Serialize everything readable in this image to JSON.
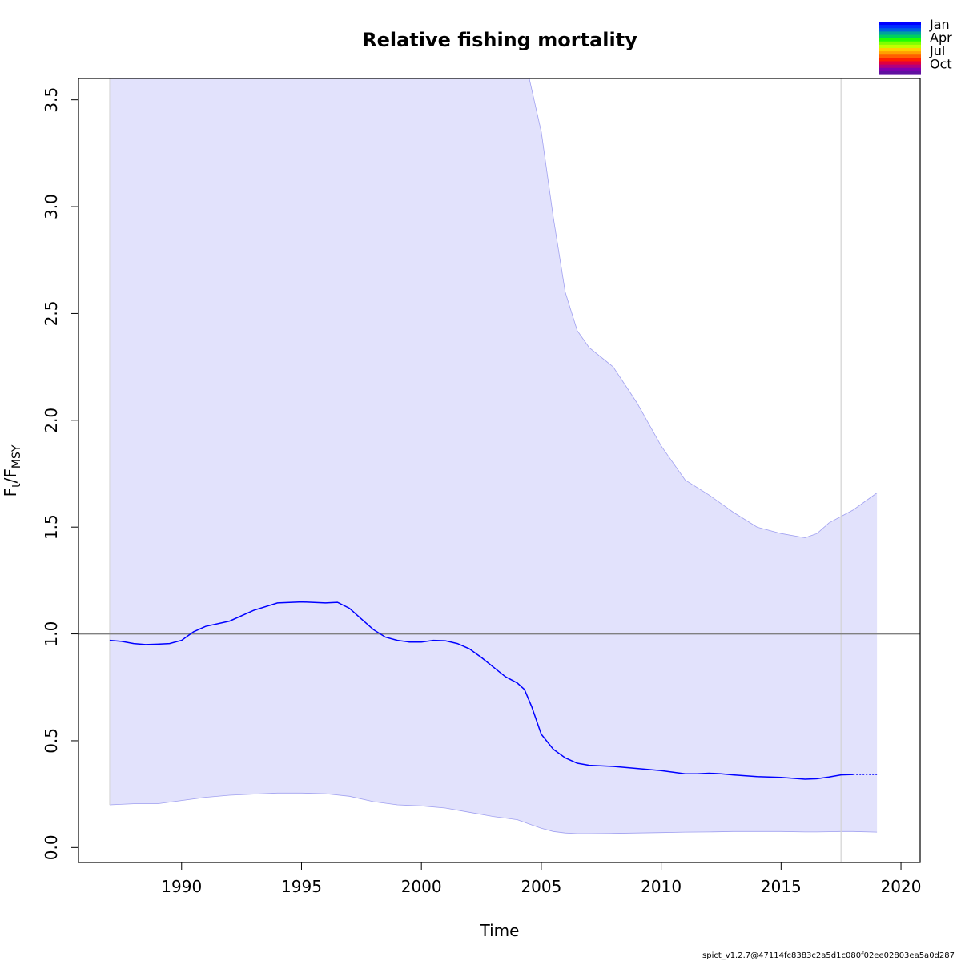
{
  "chart_data": {
    "type": "line",
    "title": "Relative fishing mortality",
    "xlabel": "Time",
    "ylabel_main": "F",
    "ylabel_sub1": "t",
    "ylabel_sep": "/F",
    "ylabel_sub2": "MSY",
    "xlim": [
      1985.7,
      2020.8
    ],
    "ylim": [
      -0.07,
      3.6
    ],
    "x_ticks": [
      1990,
      1995,
      2000,
      2005,
      2010,
      2015,
      2020
    ],
    "x_tick_labels": [
      "1990",
      "1995",
      "2000",
      "2005",
      "2010",
      "2015",
      "2020"
    ],
    "y_ticks": [
      0.0,
      0.5,
      1.0,
      1.5,
      2.0,
      2.5,
      3.0,
      3.5
    ],
    "y_tick_labels": [
      "0.0",
      "0.5",
      "1.0",
      "1.5",
      "2.0",
      "2.5",
      "3.0",
      "3.5"
    ],
    "reference_line": {
      "y": 1.0,
      "color": "#808080"
    },
    "vertical_line": {
      "x": 2017.5,
      "color": "#d3d3d3"
    },
    "band_start_line": {
      "x": 1987.0,
      "color": "#d3d3d3"
    },
    "estimate": {
      "color": "#0000ff",
      "x": [
        1987.0,
        1987.5,
        1988.0,
        1988.5,
        1989.0,
        1989.5,
        1990.0,
        1990.5,
        1991.0,
        1992.0,
        1993.0,
        1994.0,
        1995.0,
        1996.0,
        1996.5,
        1997.0,
        1997.5,
        1998.0,
        1998.5,
        1999.0,
        1999.5,
        2000.0,
        2000.5,
        2001.0,
        2001.5,
        2002.0,
        2002.5,
        2003.0,
        2003.5,
        2004.0,
        2004.3,
        2004.6,
        2005.0,
        2005.5,
        2006.0,
        2006.5,
        2007.0,
        2008.0,
        2009.0,
        2010.0,
        2011.0,
        2011.5,
        2012.0,
        2012.5,
        2013.0,
        2014.0,
        2015.0,
        2016.0,
        2016.5,
        2017.0,
        2017.5,
        2018.0
      ],
      "y": [
        0.97,
        0.965,
        0.955,
        0.95,
        0.952,
        0.955,
        0.97,
        1.01,
        1.035,
        1.06,
        1.11,
        1.145,
        1.15,
        1.145,
        1.148,
        1.12,
        1.07,
        1.02,
        0.985,
        0.97,
        0.962,
        0.962,
        0.97,
        0.968,
        0.955,
        0.93,
        0.89,
        0.845,
        0.8,
        0.77,
        0.74,
        0.66,
        0.53,
        0.46,
        0.42,
        0.395,
        0.385,
        0.38,
        0.37,
        0.36,
        0.345,
        0.345,
        0.348,
        0.345,
        0.34,
        0.332,
        0.328,
        0.32,
        0.322,
        0.33,
        0.34,
        0.342
      ]
    },
    "forecast": {
      "color": "#0000ff",
      "style": "dotted",
      "x": [
        2018.0,
        2019.0
      ],
      "y": [
        0.342,
        0.342
      ]
    },
    "ci_band": {
      "fill": "#e2e2fc",
      "edge": "#a0a0f0",
      "x": [
        1987.0,
        1988.0,
        1989.0,
        1990.0,
        1991.0,
        1992.0,
        1993.0,
        1994.0,
        1995.0,
        1996.0,
        1997.0,
        1998.0,
        1999.0,
        2000.0,
        2001.0,
        2002.0,
        2003.0,
        2004.0,
        2004.5,
        2005.0,
        2005.5,
        2006.0,
        2006.5,
        2007.0,
        2008.0,
        2009.0,
        2010.0,
        2011.0,
        2012.0,
        2013.0,
        2014.0,
        2015.0,
        2016.0,
        2016.5,
        2017.0,
        2017.5,
        2018.0,
        2019.0
      ],
      "lower": [
        0.2,
        0.205,
        0.205,
        0.22,
        0.235,
        0.245,
        0.25,
        0.255,
        0.255,
        0.252,
        0.24,
        0.215,
        0.2,
        0.195,
        0.185,
        0.165,
        0.145,
        0.13,
        0.11,
        0.09,
        0.075,
        0.068,
        0.065,
        0.065,
        0.066,
        0.068,
        0.07,
        0.072,
        0.073,
        0.075,
        0.075,
        0.075,
        0.073,
        0.073,
        0.074,
        0.075,
        0.075,
        0.072
      ],
      "upper": [
        3.6,
        3.6,
        3.6,
        3.6,
        3.6,
        3.6,
        3.6,
        3.6,
        3.6,
        3.6,
        3.6,
        3.6,
        3.6,
        3.6,
        3.6,
        3.6,
        3.6,
        3.6,
        3.6,
        3.35,
        2.95,
        2.6,
        2.42,
        2.34,
        2.25,
        2.08,
        1.88,
        1.72,
        1.65,
        1.57,
        1.5,
        1.47,
        1.45,
        1.47,
        1.52,
        1.55,
        1.58,
        1.66
      ]
    },
    "legend": {
      "position": "top-right",
      "labels": [
        "Jan",
        "Apr",
        "Jul",
        "Oct"
      ],
      "colors": [
        "#0000ff",
        "#0030ff",
        "#0060e0",
        "#00a0a0",
        "#00d060",
        "#20ff00",
        "#80ff00",
        "#c0ff00",
        "#ffd000",
        "#ffa000",
        "#ff6000",
        "#ff2000",
        "#e00040",
        "#b00080",
        "#8000b0",
        "#6010a0"
      ]
    }
  },
  "footer": "spict_v1.2.7@47114fc8383c2a5d1c080f02ee02803ea5a0d287"
}
